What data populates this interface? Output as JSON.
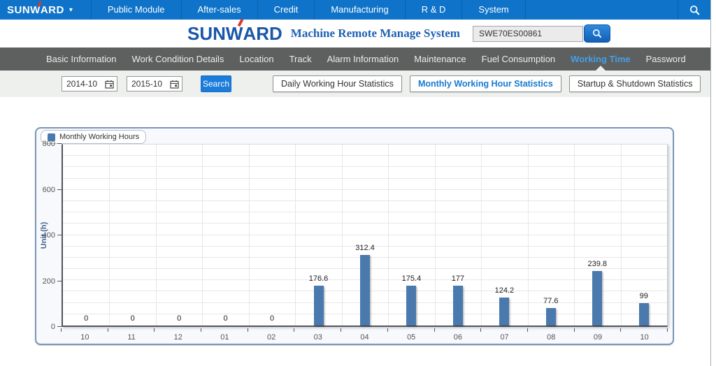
{
  "top_nav": {
    "logo_part1": "SUNW",
    "logo_part2": "ARD",
    "items": [
      "Public Module",
      "After-sales",
      "Credit",
      "Manufacturing",
      "R & D",
      "System"
    ]
  },
  "header": {
    "logo_part1": "SUNW",
    "logo_part2": "ARD",
    "title": "Machine Remote Manage System",
    "search_value": "SWE70ES00861"
  },
  "sub_nav": {
    "items": [
      "Basic Information",
      "Work Condition Details",
      "Location",
      "Track",
      "Alarm Information",
      "Maintenance",
      "Fuel Consumption",
      "Working Time",
      "Password"
    ],
    "active": "Working Time"
  },
  "filters": {
    "date_from": "2014-10",
    "date_to": "2015-10",
    "search_label": "Search",
    "tabs": [
      "Daily Working Hour Statistics",
      "Monthly Working Hour Statistics",
      "Startup & Shutdown Statistics"
    ],
    "active_tab": "Monthly Working Hour Statistics"
  },
  "chart_data": {
    "type": "bar",
    "legend": [
      "Monthly Working Hours"
    ],
    "legend_position": "top-left",
    "categories": [
      "10",
      "11",
      "12",
      "01",
      "02",
      "03",
      "04",
      "05",
      "06",
      "07",
      "08",
      "09",
      "10"
    ],
    "values": [
      0,
      0,
      0,
      0,
      0,
      176.6,
      312.4,
      175.4,
      177,
      124.2,
      77.6,
      239.8,
      99
    ],
    "ylabel": "Unit (h)",
    "ylim": [
      0,
      800
    ],
    "yticks": [
      0,
      200,
      400,
      600,
      800
    ],
    "minor_grid_step": 50,
    "grid": true,
    "bar_color": "#4a79ae"
  },
  "colors": {
    "topbar_blue": "#0e73c9",
    "button_blue": "#1b7cd9",
    "active_link_blue": "#42a0e8",
    "title_blue": "#1d61b2",
    "bar_blue": "#4a79ae",
    "chart_border": "#7b95b7"
  }
}
